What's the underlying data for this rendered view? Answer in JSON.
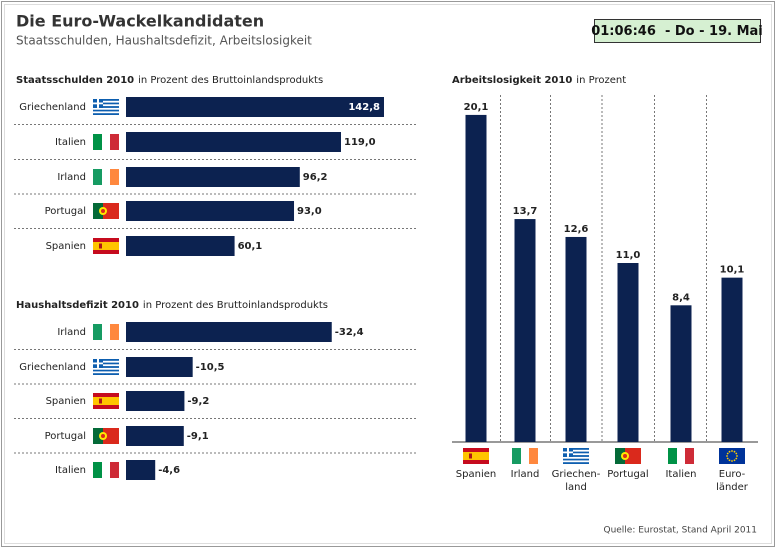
{
  "header": {
    "title": "Die Euro-Wackelkandidaten",
    "subtitle": "Staatsschulden, Haushaltsdefizit, Arbeitslosigkeit",
    "clock": "01:06:46  - Do - 19. Mai"
  },
  "source": "Quelle: Eurostat, Stand April 2011",
  "chart_data": [
    {
      "type": "hbar",
      "title": "Staatsschulden 2010",
      "title_note": "in Prozent des Bruttoinlandsprodukts",
      "categories": [
        "Griechenland",
        "Italien",
        "Irland",
        "Portugal",
        "Spanien"
      ],
      "values": [
        142.8,
        119.0,
        96.2,
        93.0,
        60.1
      ],
      "value_labels": [
        "142,8",
        "119,0",
        "96,2",
        "93,0",
        "60,1"
      ],
      "color": "#0c2250",
      "xlim": [
        0,
        150
      ]
    },
    {
      "type": "hbar",
      "title": "Haushaltsdefizit 2010",
      "title_note": "in Prozent des Bruttoinlandsprodukts",
      "categories": [
        "Irland",
        "Griechenland",
        "Spanien",
        "Portugal",
        "Italien"
      ],
      "values": [
        -32.4,
        -10.5,
        -9.2,
        -9.1,
        -4.6
      ],
      "value_labels": [
        "-32,4",
        "-10,5",
        "-9,2",
        "-9,1",
        "-4,6"
      ],
      "color": "#0c2250",
      "xlim": [
        0,
        -40
      ]
    },
    {
      "type": "bar",
      "title": "Arbeitslosigkeit 2010",
      "title_note": "in Prozent",
      "categories": [
        "Spanien",
        "Irland",
        "Griechen-\nland",
        "Portugal",
        "Italien",
        "Euro-\nländer"
      ],
      "values": [
        20.1,
        13.7,
        12.6,
        11.0,
        8.4,
        10.1
      ],
      "value_labels": [
        "20,1",
        "13,7",
        "12,6",
        "11,0",
        "8,4",
        "10,1"
      ],
      "color": "#0c2250",
      "ylim": [
        0,
        22
      ]
    }
  ]
}
